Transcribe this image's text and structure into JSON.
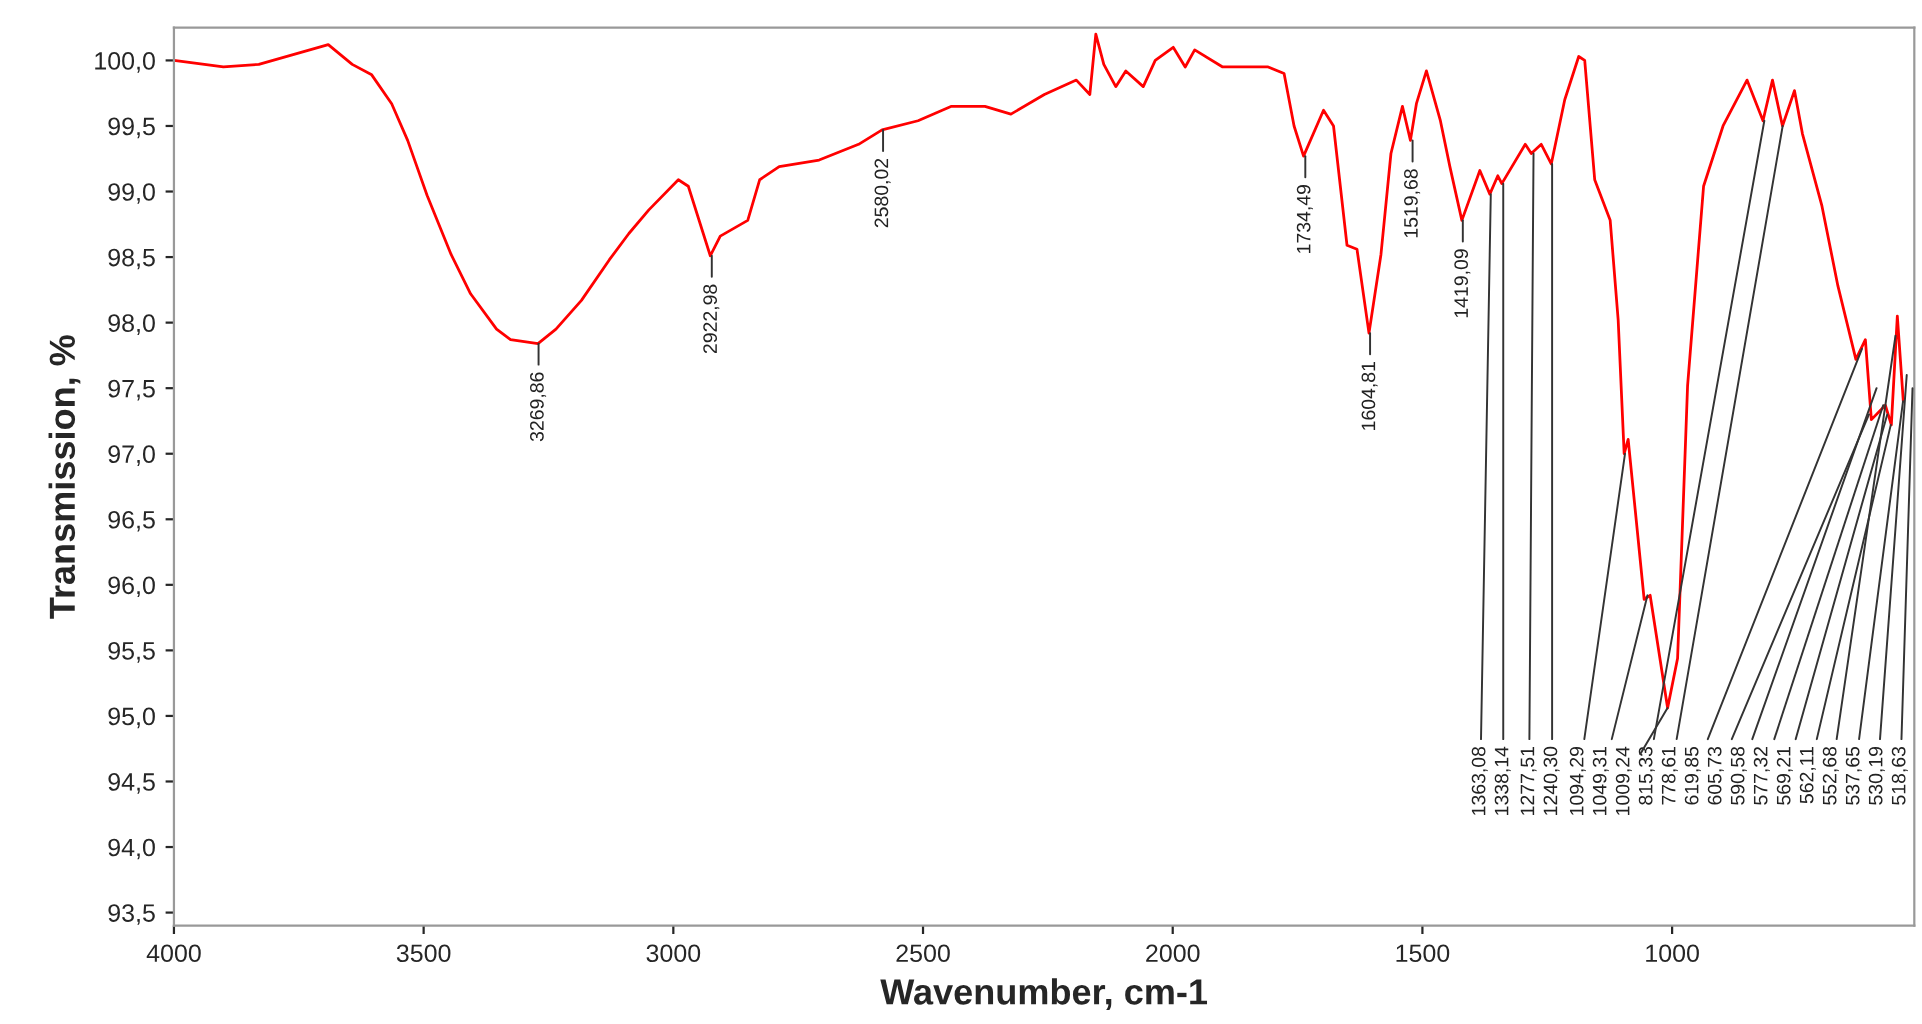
{
  "chart_data": {
    "type": "line",
    "xlabel": "Wavenumber, cm-1",
    "ylabel": "Transmission, %",
    "xlim": [
      4000,
      515
    ],
    "ylim": [
      93.4,
      100.25
    ],
    "xticks": [
      4000,
      3500,
      3000,
      2500,
      2000,
      1500,
      1000
    ],
    "yticks": [
      {
        "value": 93.5,
        "label": "93,5"
      },
      {
        "value": 94.0,
        "label": "94,0"
      },
      {
        "value": 94.5,
        "label": "94,5"
      },
      {
        "value": 95.0,
        "label": "95,0"
      },
      {
        "value": 95.5,
        "label": "95,5"
      },
      {
        "value": 96.0,
        "label": "96,0"
      },
      {
        "value": 96.5,
        "label": "96,5"
      },
      {
        "value": 97.0,
        "label": "97,0"
      },
      {
        "value": 97.5,
        "label": "97,5"
      },
      {
        "value": 98.0,
        "label": "98,0"
      },
      {
        "value": 98.5,
        "label": "98,5"
      },
      {
        "value": 99.0,
        "label": "99,0"
      },
      {
        "value": 99.5,
        "label": "99,5"
      },
      {
        "value": 100.0,
        "label": "100,0"
      }
    ],
    "grid": false,
    "marker": "none",
    "line_style": "solid",
    "series": [
      {
        "color": "#ff0000",
        "x": [
          4000,
          3901,
          3830,
          3691,
          3643,
          3604,
          3564,
          3532,
          3493,
          3445,
          3406,
          3354,
          3326,
          3271,
          3235,
          3184,
          3128,
          3089,
          3049,
          2990,
          2970,
          2926,
          2906,
          2851,
          2827,
          2788,
          2708,
          2629,
          2582,
          2510,
          2443,
          2376,
          2324,
          2257,
          2193,
          2166,
          2154,
          2138,
          2114,
          2094,
          2059,
          2035,
          1999,
          1975,
          1956,
          1900,
          1809,
          1777,
          1757,
          1738,
          1698,
          1678,
          1651,
          1631,
          1607,
          1583,
          1563,
          1540,
          1524,
          1512,
          1492,
          1464,
          1445,
          1421,
          1385,
          1365,
          1349,
          1341,
          1294,
          1282,
          1262,
          1242,
          1215,
          1187,
          1175,
          1155,
          1124,
          1108,
          1096,
          1088,
          1056,
          1044,
          1009,
          989,
          969,
          937,
          898,
          850,
          818,
          799,
          779,
          755,
          739,
          700,
          668,
          632,
          613,
          601,
          573,
          561,
          549,
          537
        ],
        "values": [
          100.0,
          99.95,
          99.97,
          100.12,
          99.97,
          99.89,
          99.67,
          99.39,
          98.97,
          98.52,
          98.22,
          97.95,
          97.87,
          97.84,
          97.95,
          98.17,
          98.48,
          98.68,
          98.86,
          99.09,
          99.04,
          98.51,
          98.66,
          98.78,
          99.09,
          99.19,
          99.24,
          99.36,
          99.47,
          99.54,
          99.65,
          99.65,
          99.59,
          99.74,
          99.85,
          99.74,
          100.2,
          99.97,
          99.8,
          99.92,
          99.8,
          100.0,
          100.1,
          99.95,
          100.08,
          99.95,
          99.95,
          99.9,
          99.5,
          99.27,
          99.62,
          99.5,
          98.59,
          98.56,
          97.92,
          98.52,
          99.29,
          99.65,
          99.39,
          99.67,
          99.92,
          99.54,
          99.19,
          98.78,
          99.16,
          98.98,
          99.12,
          99.06,
          99.36,
          99.29,
          99.36,
          99.21,
          99.7,
          100.03,
          100.0,
          99.09,
          98.78,
          98.02,
          97.0,
          97.11,
          95.89,
          95.92,
          95.06,
          95.44,
          97.52,
          99.04,
          99.5,
          99.85,
          99.54,
          99.85,
          99.5,
          99.77,
          99.44,
          98.89,
          98.28,
          97.72,
          97.87,
          97.26,
          97.37,
          97.22,
          98.05,
          97.4
        ]
      }
    ],
    "annotations": [
      {
        "text": "3269,86",
        "x": 3269.86,
        "y": 97.84
      },
      {
        "text": "2922,98",
        "x": 2922.98,
        "y": 98.51
      },
      {
        "text": "2580,02",
        "x": 2580.02,
        "y": 99.47
      },
      {
        "text": "1734,49",
        "x": 1734.49,
        "y": 99.27
      },
      {
        "text": "1604,81",
        "x": 1604.81,
        "y": 97.92
      },
      {
        "text": "1519,68",
        "x": 1519.68,
        "y": 99.39
      },
      {
        "text": "1419,09",
        "x": 1419.09,
        "y": 98.78
      },
      {
        "text": "1363,08",
        "x": 1363.08,
        "y": 98.98
      },
      {
        "text": "1338,14",
        "x": 1338.14,
        "y": 99.06
      },
      {
        "text": "1277,51",
        "x": 1277.51,
        "y": 99.29
      },
      {
        "text": "1240,30",
        "x": 1240.3,
        "y": 99.21
      },
      {
        "text": "1094,29",
        "x": 1094.29,
        "y": 97.0
      },
      {
        "text": "1049,31",
        "x": 1049.31,
        "y": 95.92
      },
      {
        "text": "1009,24",
        "x": 1009.24,
        "y": 95.06
      },
      {
        "text": "815,33",
        "x": 815.33,
        "y": 99.54
      },
      {
        "text": "778,61",
        "x": 778.61,
        "y": 99.5
      },
      {
        "text": "619,85",
        "x": 619.85,
        "y": 97.8
      },
      {
        "text": "605,73",
        "x": 605.73,
        "y": 97.3
      },
      {
        "text": "590,58",
        "x": 590.58,
        "y": 97.5
      },
      {
        "text": "577,32",
        "x": 577.32,
        "y": 97.37
      },
      {
        "text": "569,21",
        "x": 569.21,
        "y": 97.3
      },
      {
        "text": "562,11",
        "x": 562.11,
        "y": 97.22
      },
      {
        "text": "552,68",
        "x": 552.68,
        "y": 97.9
      },
      {
        "text": "537,65",
        "x": 537.65,
        "y": 97.4
      },
      {
        "text": "530,19",
        "x": 530.19,
        "y": 97.6
      },
      {
        "text": "518,63",
        "x": 518.63,
        "y": 97.5
      }
    ]
  }
}
